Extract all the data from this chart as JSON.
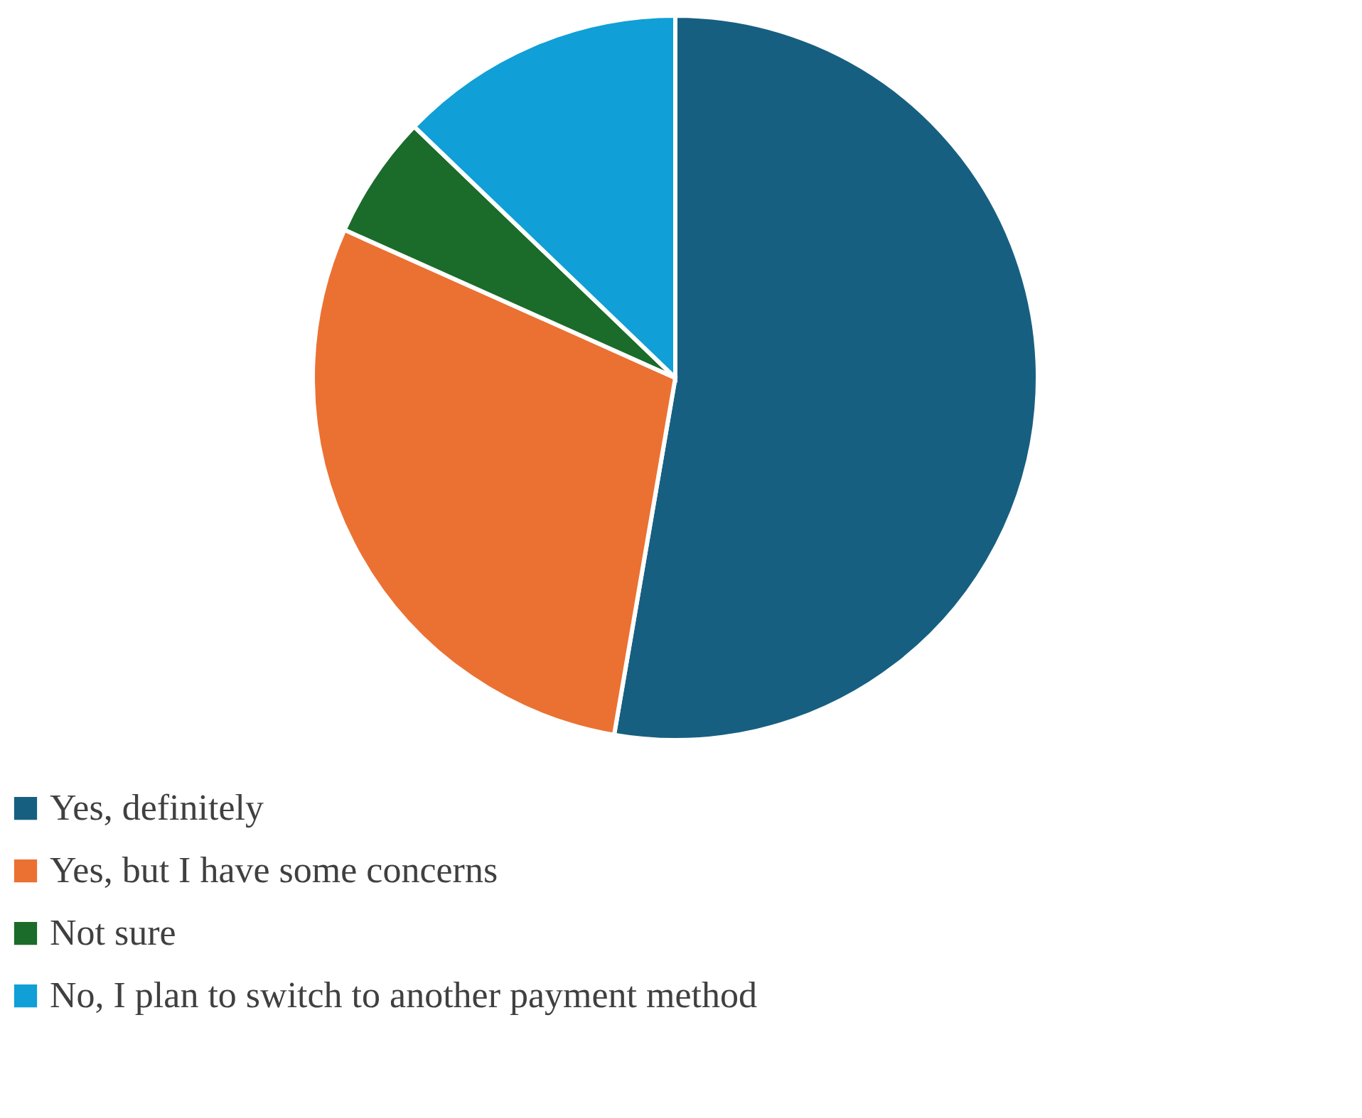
{
  "chart_data": {
    "type": "pie",
    "categories": [
      "Yes, definitely",
      "Yes, but I have some concerns",
      "Not sure",
      "No, I plan to switch to another payment method"
    ],
    "values": [
      52.7,
      29.0,
      5.5,
      12.8
    ],
    "colors": [
      "#175f81",
      "#eb7132",
      "#1b6b2a",
      "#109fd6"
    ],
    "legend": "bottom"
  }
}
